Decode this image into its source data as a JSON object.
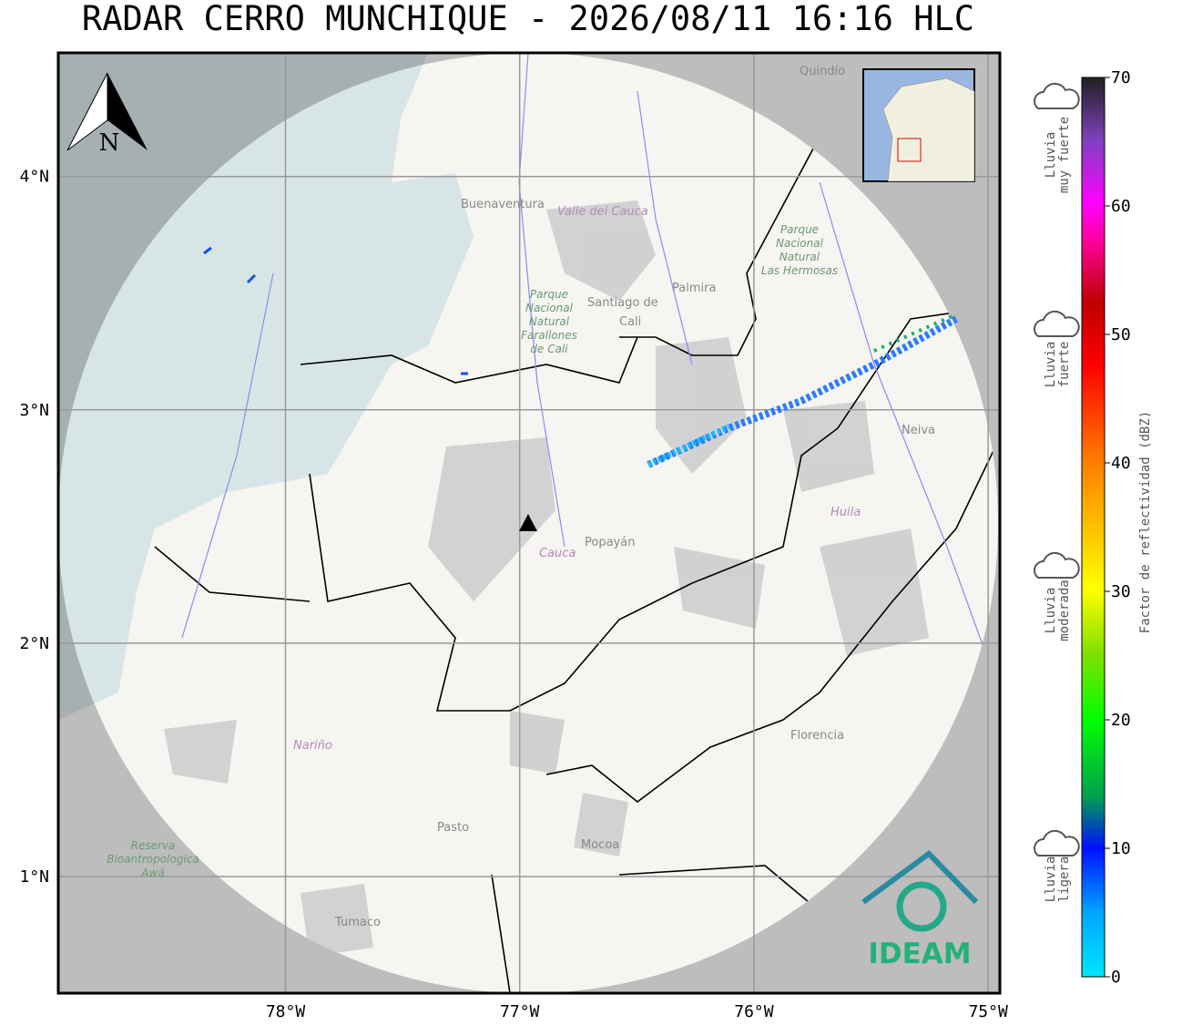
{
  "title": "RADAR CERRO MUNCHIQUE - 2026/08/11 16:16 HLC",
  "map": {
    "xlim": [
      -78.97,
      -74.95
    ],
    "ylim": [
      0.5,
      4.53
    ],
    "lat_ticks": [
      {
        "value": 4,
        "label": "4°N"
      },
      {
        "value": 3,
        "label": "3°N"
      },
      {
        "value": 2,
        "label": "2°N"
      },
      {
        "value": 1,
        "label": "1°N"
      }
    ],
    "lon_ticks": [
      {
        "value": -78,
        "label": "78°W"
      },
      {
        "value": -77,
        "label": "77°W"
      },
      {
        "value": -76,
        "label": "76°W"
      },
      {
        "value": -75,
        "label": "75°W"
      }
    ],
    "north": "N",
    "logo": "IDEAM",
    "places": [
      "Buenaventura",
      "Palmira",
      "Santiago de",
      "Cali",
      "Neiva",
      "Popayán",
      "Pasto",
      "Mocoa",
      "Florencia",
      "Tumaco",
      "Quindío"
    ],
    "departments": [
      "Valle del Cauca",
      "Cauca",
      "Huila",
      "Nariño"
    ],
    "parks": [
      [
        "Parque",
        "Nacional",
        "Natural",
        "Las Hermosas"
      ],
      [
        "Parque",
        "Nacional",
        "Natural",
        "Farallones",
        "de Cali"
      ],
      [
        "Reserva",
        "Bioantropologica",
        "Awá"
      ]
    ]
  },
  "colorbar": {
    "label": "Factor de reflectividad (dBZ)",
    "lim": [
      0,
      70
    ],
    "ticks": [
      0,
      10,
      20,
      30,
      40,
      50,
      60,
      70
    ]
  },
  "legend": [
    [
      "Lluvia",
      "muy fuerte"
    ],
    [
      "Lluvia",
      "fuerte"
    ],
    [
      "Lluvia",
      "moderada"
    ],
    [
      "Lluvia",
      "ligera"
    ]
  ]
}
